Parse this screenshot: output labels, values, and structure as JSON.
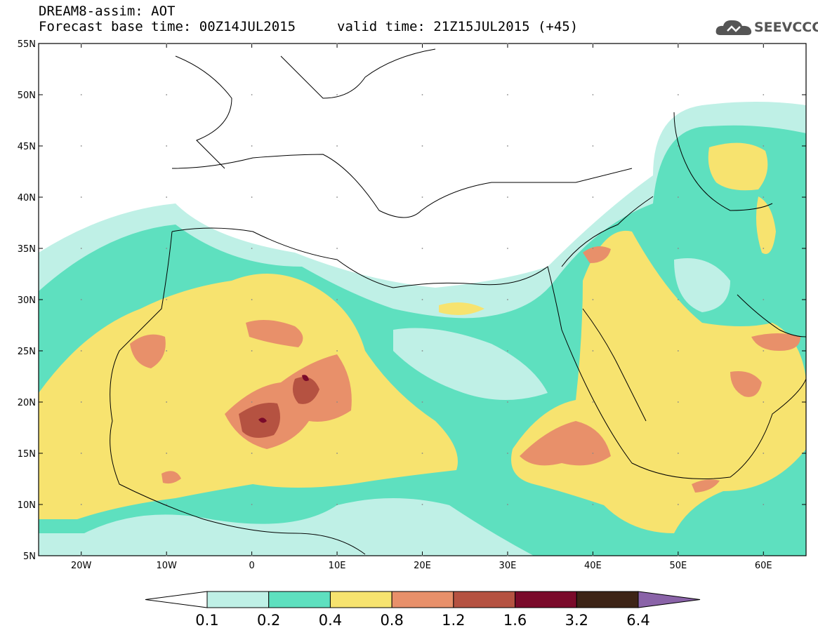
{
  "title": {
    "line1": "DREAM8-assim: AOT",
    "base_time": "Forecast base time: 00Z14JUL2015",
    "valid_time": "valid time: 21Z15JUL2015 (+45)"
  },
  "logo": {
    "text": "SEEVCCC",
    "icon": "cloud-icon"
  },
  "map": {
    "lat_labels": [
      "55N",
      "50N",
      "45N",
      "40N",
      "35N",
      "30N",
      "25N",
      "20N",
      "15N",
      "10N",
      "5N"
    ],
    "lon_labels": [
      "20W",
      "10W",
      "0",
      "10E",
      "20E",
      "30E",
      "40E",
      "50E",
      "60E"
    ],
    "lon_range": [
      -25,
      65
    ],
    "lat_range": [
      5,
      55
    ]
  },
  "colorbar": {
    "levels": [
      "0.1",
      "0.2",
      "0.4",
      "0.8",
      "1.2",
      "1.6",
      "3.2",
      "6.4"
    ],
    "colors": [
      "#ffffff",
      "#bff0e6",
      "#5ee0bf",
      "#f7e36f",
      "#e8906a",
      "#b55241",
      "#7a0a2a",
      "#3d2416",
      "#8a63a8"
    ]
  }
}
